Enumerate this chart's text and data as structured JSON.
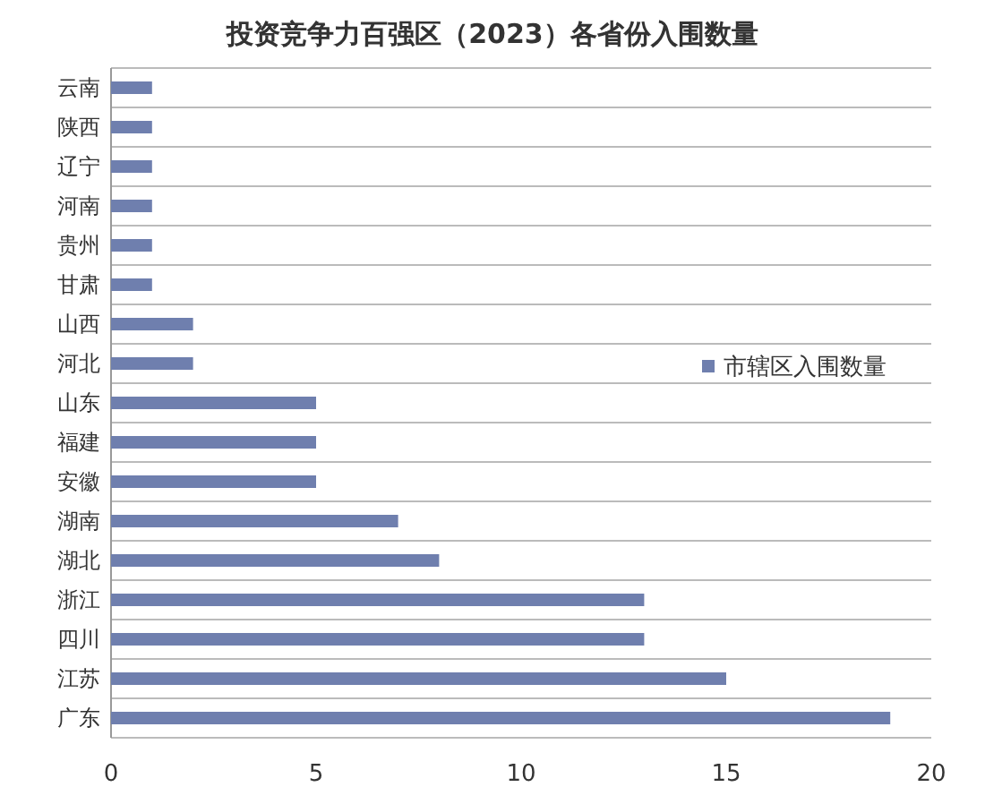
{
  "chart_data": {
    "type": "bar",
    "orientation": "horizontal",
    "title": "投资竞争力百强区（2023）各省份入围数量",
    "categories": [
      "云南",
      "陕西",
      "辽宁",
      "河南",
      "贵州",
      "甘肃",
      "山西",
      "河北",
      "山东",
      "福建",
      "安徽",
      "湖南",
      "湖北",
      "浙江",
      "四川",
      "江苏",
      "广东"
    ],
    "series": [
      {
        "name": "市辖区入围数量",
        "color": "#6f7fae",
        "values": [
          1,
          1,
          1,
          1,
          1,
          1,
          2,
          2,
          5,
          5,
          5,
          7,
          8,
          13,
          13,
          15,
          19
        ]
      }
    ],
    "xlim": [
      0,
      20
    ],
    "xticks": [
      0,
      5,
      10,
      15,
      20
    ],
    "grid": "y",
    "legend": "right"
  }
}
